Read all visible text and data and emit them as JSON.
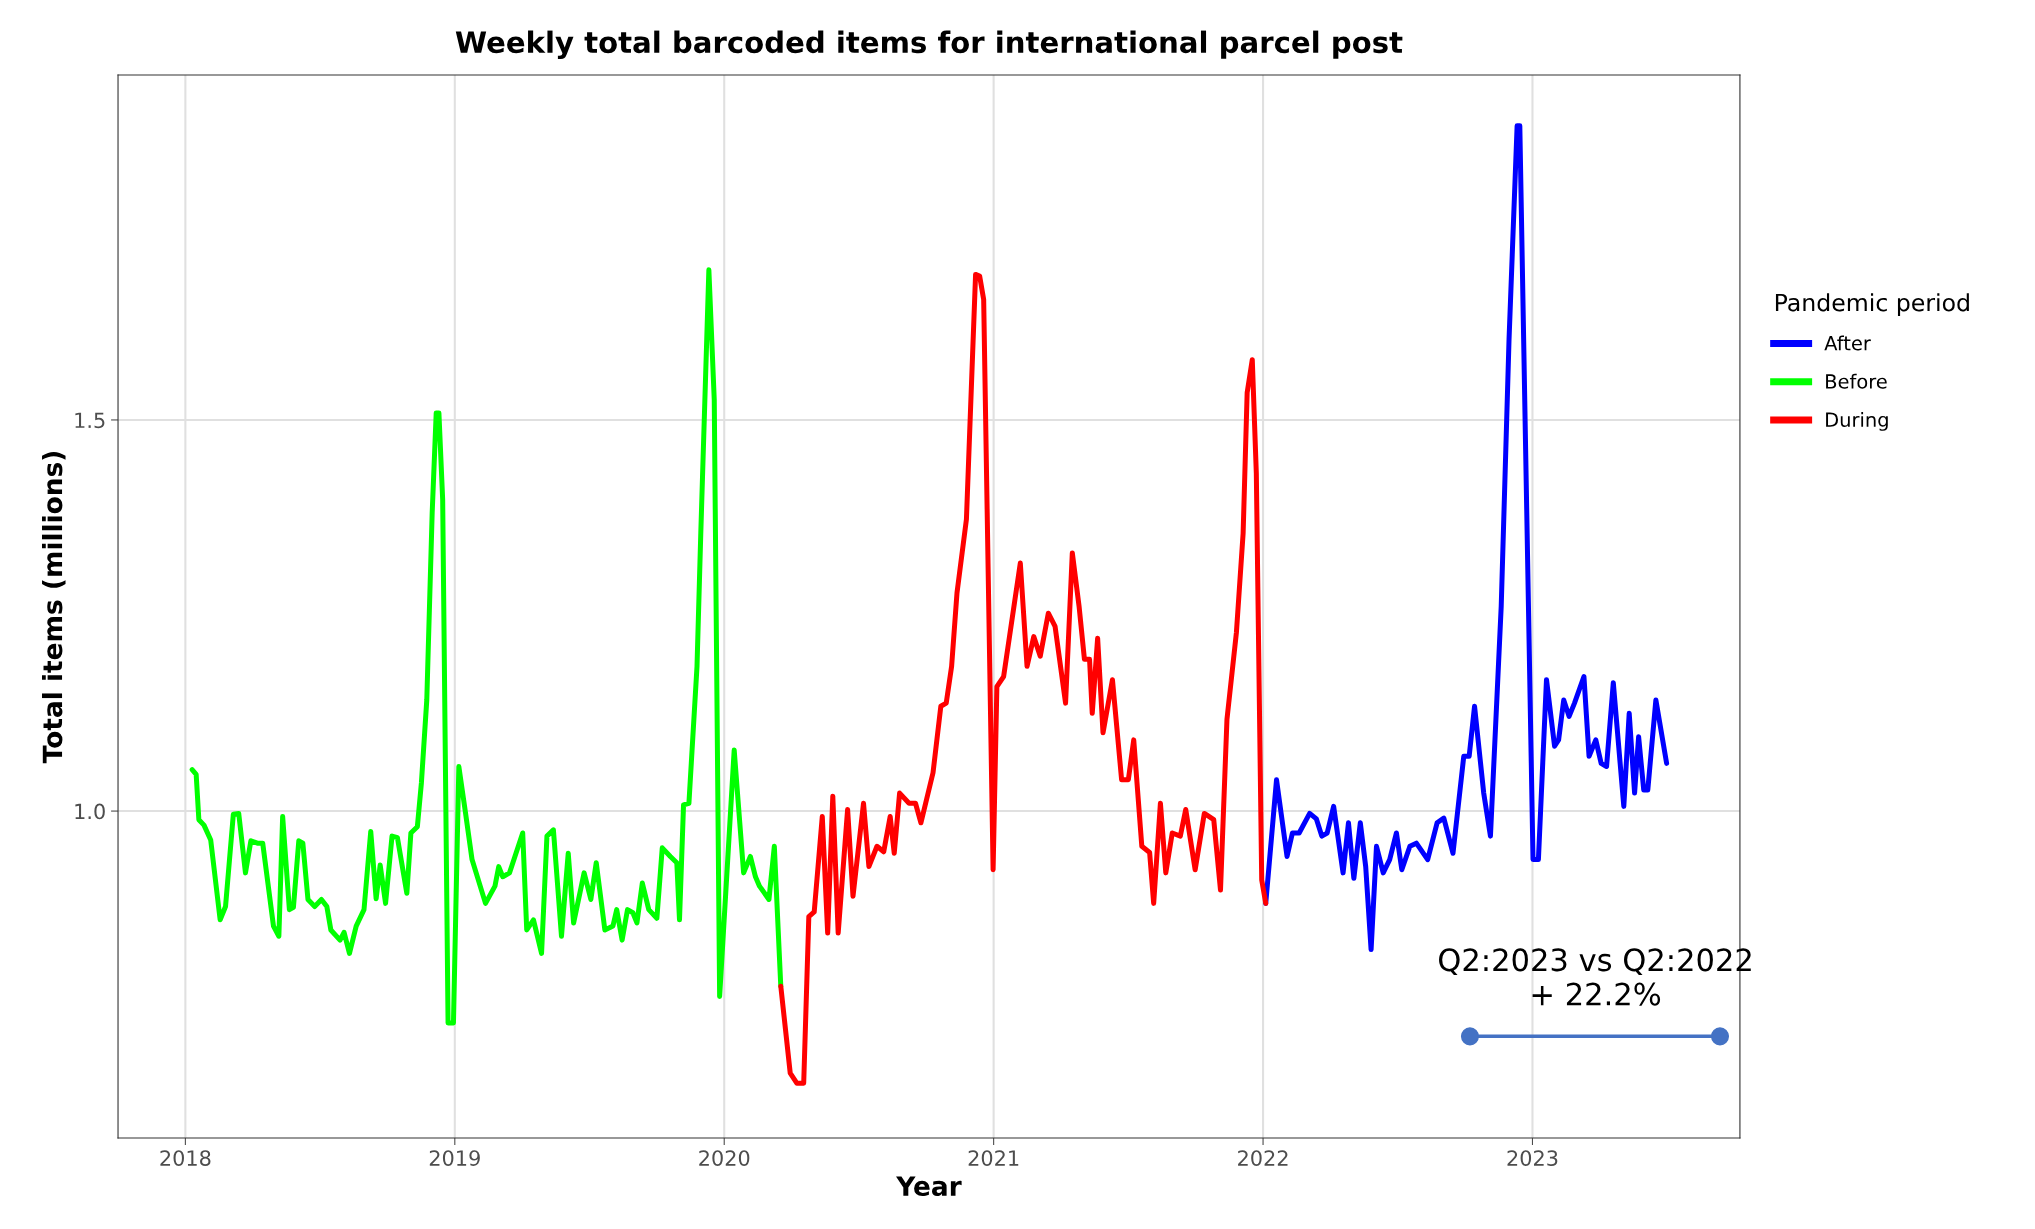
{
  "chart_data": {
    "type": "line",
    "title": "Weekly total barcoded items for international parcel post",
    "xlabel": "Year",
    "ylabel": "Total items (millions)",
    "legend_title": "Pandemic period",
    "legend": "right",
    "grid": true,
    "line_style": "solid",
    "xlim": [
      2017.75,
      2023.77
    ],
    "xticks": [
      2018,
      2019,
      2020,
      2021,
      2022,
      2023
    ],
    "ylim": [
      0.582,
      1.941
    ],
    "yticks": [
      {
        "value": 1.0,
        "label": "1.0"
      },
      1.5
    ],
    "series": [
      {
        "name": "After",
        "color": "#0000ff",
        "x": [
          2022.01,
          2022.05,
          2022.089,
          2022.109,
          2022.134,
          2022.173,
          2022.198,
          2022.218,
          2022.238,
          2022.262,
          2022.297,
          2022.317,
          2022.337,
          2022.361,
          2022.381,
          2022.401,
          2022.421,
          2022.446,
          2022.47,
          2022.495,
          2022.515,
          2022.545,
          2022.569,
          2022.611,
          2022.646,
          2022.671,
          2022.705,
          2022.745,
          2022.765,
          2022.785,
          2022.819,
          2022.844,
          2022.884,
          2022.913,
          2022.943,
          2022.953,
          2023.002,
          2023.022,
          2023.052,
          2023.082,
          2023.097,
          2023.116,
          2023.136,
          2023.156,
          2023.191,
          2023.21,
          2023.235,
          2023.255,
          2023.275,
          2023.3,
          2023.339,
          2023.359,
          2023.379,
          2023.394,
          2023.413,
          2023.428,
          2023.458,
          2023.498
        ],
        "values": [
          0.882,
          1.04,
          0.942,
          0.972,
          0.972,
          0.997,
          0.99,
          0.968,
          0.972,
          1.006,
          0.921,
          0.985,
          0.914,
          0.985,
          0.929,
          0.823,
          0.955,
          0.921,
          0.938,
          0.972,
          0.925,
          0.955,
          0.959,
          0.938,
          0.985,
          0.991,
          0.946,
          1.07,
          1.07,
          1.134,
          1.023,
          0.968,
          1.262,
          1.603,
          1.876,
          1.876,
          0.938,
          0.938,
          1.168,
          1.083,
          1.091,
          1.142,
          1.121,
          1.138,
          1.172,
          1.07,
          1.091,
          1.061,
          1.057,
          1.164,
          1.006,
          1.125,
          1.023,
          1.095,
          1.027,
          1.027,
          1.142,
          1.061
        ]
      },
      {
        "name": "Before",
        "color": "#00ff00",
        "x": [
          2018.025,
          2018.04,
          2018.05,
          2018.069,
          2018.094,
          2018.129,
          2018.149,
          2018.178,
          2018.198,
          2018.223,
          2018.243,
          2018.267,
          2018.287,
          2018.327,
          2018.347,
          2018.361,
          2018.386,
          2018.401,
          2018.421,
          2018.436,
          2018.455,
          2018.48,
          2018.505,
          2018.525,
          2018.54,
          2018.574,
          2018.589,
          2018.609,
          2018.634,
          2018.663,
          2018.688,
          2018.708,
          2018.723,
          2018.743,
          2018.767,
          2018.787,
          2018.822,
          2018.837,
          2018.861,
          2018.876,
          2018.896,
          2018.916,
          2018.931,
          2018.941,
          2018.955,
          2018.975,
          2018.995,
          2019.015,
          2019.04,
          2019.064,
          2019.114,
          2019.149,
          2019.163,
          2019.178,
          2019.203,
          2019.252,
          2019.267,
          2019.292,
          2019.322,
          2019.342,
          2019.366,
          2019.396,
          2019.421,
          2019.441,
          2019.48,
          2019.505,
          2019.525,
          2019.557,
          2019.587,
          2019.601,
          2019.621,
          2019.641,
          2019.661,
          2019.676,
          2019.696,
          2019.72,
          2019.75,
          2019.77,
          2019.8,
          2019.824,
          2019.834,
          2019.849,
          2019.869,
          2019.899,
          2019.913,
          2019.943,
          2019.963,
          2019.983,
          2020.037,
          2020.072,
          2020.097,
          2020.116,
          2020.131,
          2020.166,
          2020.186,
          2020.21
        ],
        "values": [
          1.053,
          1.047,
          0.989,
          0.982,
          0.963,
          0.861,
          0.878,
          0.996,
          0.997,
          0.921,
          0.962,
          0.959,
          0.959,
          0.853,
          0.84,
          0.993,
          0.874,
          0.877,
          0.962,
          0.959,
          0.887,
          0.878,
          0.887,
          0.878,
          0.848,
          0.835,
          0.845,
          0.818,
          0.853,
          0.874,
          0.974,
          0.888,
          0.931,
          0.882,
          0.968,
          0.966,
          0.895,
          0.972,
          0.98,
          1.036,
          1.142,
          1.381,
          1.509,
          1.509,
          1.398,
          0.729,
          0.729,
          1.057,
          0.997,
          0.938,
          0.882,
          0.904,
          0.929,
          0.916,
          0.921,
          0.972,
          0.848,
          0.861,
          0.818,
          0.968,
          0.976,
          0.84,
          0.946,
          0.857,
          0.921,
          0.887,
          0.934,
          0.848,
          0.853,
          0.874,
          0.835,
          0.874,
          0.87,
          0.857,
          0.908,
          0.874,
          0.863,
          0.953,
          0.942,
          0.934,
          0.861,
          1.008,
          1.01,
          1.185,
          1.355,
          1.692,
          1.526,
          0.763,
          1.078,
          0.921,
          0.942,
          0.916,
          0.904,
          0.887,
          0.955,
          0.776
        ]
      },
      {
        "name": "During",
        "color": "#ff0000",
        "x": [
          2020.21,
          2020.245,
          2020.27,
          2020.295,
          2020.314,
          2020.334,
          2020.364,
          2020.384,
          2020.403,
          2020.423,
          2020.458,
          2020.478,
          2020.517,
          2020.537,
          2020.567,
          2020.592,
          2020.616,
          2020.631,
          2020.651,
          2020.686,
          2020.71,
          2020.73,
          2020.775,
          2020.804,
          2020.824,
          2020.844,
          2020.864,
          2020.899,
          2020.933,
          2020.948,
          2020.963,
          2020.998,
          2021.012,
          2021.037,
          2021.099,
          2021.124,
          2021.149,
          2021.173,
          2021.203,
          2021.228,
          2021.267,
          2021.292,
          2021.317,
          2021.337,
          2021.356,
          2021.366,
          2021.386,
          2021.406,
          2021.441,
          2021.475,
          2021.5,
          2021.52,
          2021.55,
          2021.579,
          2021.594,
          2021.619,
          2021.639,
          2021.663,
          2021.693,
          2021.713,
          2021.748,
          2021.782,
          2021.817,
          2021.842,
          2021.866,
          2021.901,
          2021.926,
          2021.941,
          2021.96,
          2021.975,
          2021.995,
          2022.01
        ],
        "values": [
          0.776,
          0.665,
          0.652,
          0.652,
          0.865,
          0.871,
          0.993,
          0.844,
          1.019,
          0.844,
          1.002,
          0.891,
          1.01,
          0.929,
          0.955,
          0.948,
          0.993,
          0.946,
          1.023,
          1.01,
          1.01,
          0.985,
          1.049,
          1.134,
          1.138,
          1.185,
          1.279,
          1.373,
          1.686,
          1.684,
          1.654,
          0.925,
          1.159,
          1.172,
          1.317,
          1.185,
          1.223,
          1.198,
          1.253,
          1.236,
          1.138,
          1.33,
          1.262,
          1.194,
          1.194,
          1.125,
          1.221,
          1.1,
          1.168,
          1.04,
          1.04,
          1.091,
          0.955,
          0.947,
          0.882,
          1.01,
          0.921,
          0.972,
          0.968,
          1.002,
          0.925,
          0.997,
          0.989,
          0.899,
          1.117,
          1.228,
          1.355,
          1.535,
          1.577,
          1.432,
          0.912,
          0.882
        ]
      },
      {
        "color": "#4472c4",
        "marker": "circle",
        "x": [
          2022.768,
          2023.696
        ],
        "values": [
          0.712,
          0.712
        ]
      }
    ],
    "annotations": [
      "Q2:2023 vs Q2:2022\n+ 22.2%"
    ]
  }
}
